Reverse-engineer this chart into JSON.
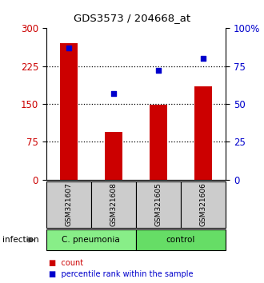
{
  "title": "GDS3573 / 204668_at",
  "samples": [
    "GSM321607",
    "GSM321608",
    "GSM321605",
    "GSM321606"
  ],
  "counts": [
    270,
    95,
    148,
    185
  ],
  "percentiles": [
    87,
    57,
    72,
    80
  ],
  "left_ylim": [
    0,
    300
  ],
  "right_ylim": [
    0,
    100
  ],
  "left_yticks": [
    0,
    75,
    150,
    225,
    300
  ],
  "right_yticks": [
    0,
    25,
    50,
    75,
    100
  ],
  "right_yticklabels": [
    "0",
    "25",
    "50",
    "75",
    "100%"
  ],
  "bar_color": "#cc0000",
  "dot_color": "#0000cc",
  "groups": [
    {
      "label": "C. pneumonia",
      "indices": [
        0,
        1
      ],
      "color": "#88ee88"
    },
    {
      "label": "control",
      "indices": [
        2,
        3
      ],
      "color": "#66dd66"
    }
  ],
  "group_label": "infection",
  "legend_count_label": "count",
  "legend_pct_label": "percentile rank within the sample",
  "bg_color": "#ffffff",
  "sample_box_color": "#cccccc",
  "hgrid_color": "black"
}
